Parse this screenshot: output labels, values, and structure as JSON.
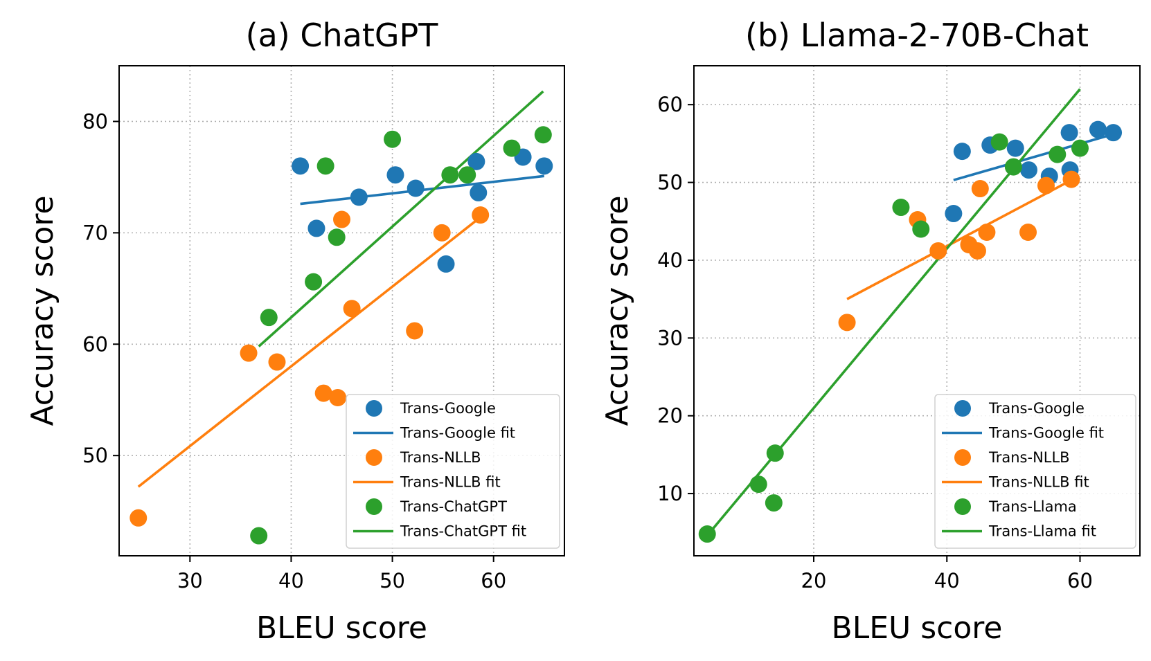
{
  "chart_data": [
    {
      "type": "scatter",
      "title": "(a) ChatGPT",
      "xlabel": "BLEU score",
      "ylabel": "Accuracy score",
      "xlim": [
        23,
        67
      ],
      "ylim": [
        41,
        85
      ],
      "xticks": [
        30,
        40,
        50,
        60
      ],
      "yticks": [
        50,
        60,
        70,
        80
      ],
      "grid": true,
      "legend_position": "lower-right",
      "series": [
        {
          "name": "Trans-Google",
          "color": "#1f77b4",
          "points": [
            [
              40.9,
              76.0
            ],
            [
              42.5,
              70.4
            ],
            [
              46.7,
              73.2
            ],
            [
              50.3,
              75.2
            ],
            [
              52.3,
              74.0
            ],
            [
              55.3,
              67.2
            ],
            [
              58.3,
              76.4
            ],
            [
              58.5,
              73.6
            ],
            [
              62.9,
              76.8
            ],
            [
              65.0,
              76.0
            ]
          ],
          "fit": {
            "name": "Trans-Google fit",
            "from": [
              40.9,
              72.6
            ],
            "to": [
              65.0,
              75.1
            ]
          }
        },
        {
          "name": "Trans-NLLB",
          "color": "#ff7f0e",
          "points": [
            [
              24.9,
              44.4
            ],
            [
              35.8,
              59.2
            ],
            [
              38.6,
              58.4
            ],
            [
              43.2,
              55.6
            ],
            [
              44.6,
              55.2
            ],
            [
              45.0,
              71.2
            ],
            [
              46.0,
              63.2
            ],
            [
              52.2,
              61.2
            ],
            [
              54.9,
              70.0
            ],
            [
              58.7,
              71.6
            ]
          ],
          "fit": {
            "name": "Trans-NLLB fit",
            "from": [
              24.9,
              47.2
            ],
            "to": [
              58.7,
              71.4
            ]
          }
        },
        {
          "name": "Trans-ChatGPT",
          "color": "#2ca02c",
          "points": [
            [
              36.8,
              42.8
            ],
            [
              37.8,
              62.4
            ],
            [
              42.2,
              65.6
            ],
            [
              43.4,
              76.0
            ],
            [
              44.5,
              69.6
            ],
            [
              50.0,
              78.4
            ],
            [
              55.7,
              75.2
            ],
            [
              57.4,
              75.2
            ],
            [
              61.8,
              77.6
            ],
            [
              64.9,
              78.8
            ]
          ],
          "fit": {
            "name": "Trans-ChatGPT fit",
            "from": [
              36.8,
              59.8
            ],
            "to": [
              64.9,
              82.7
            ]
          }
        }
      ]
    },
    {
      "type": "scatter",
      "title": "(b) Llama-2-70B-Chat",
      "xlabel": "BLEU score",
      "ylabel": "Accuracy score",
      "xlim": [
        2,
        69
      ],
      "ylim": [
        2,
        65
      ],
      "xticks": [
        20,
        40,
        60
      ],
      "yticks": [
        10,
        20,
        30,
        40,
        50,
        60
      ],
      "grid": true,
      "legend_position": "lower-right",
      "series": [
        {
          "name": "Trans-Google",
          "color": "#1f77b4",
          "points": [
            [
              41.0,
              46.0
            ],
            [
              42.3,
              54.0
            ],
            [
              46.5,
              54.8
            ],
            [
              50.3,
              54.4
            ],
            [
              52.3,
              51.6
            ],
            [
              55.4,
              50.8
            ],
            [
              58.4,
              56.4
            ],
            [
              58.5,
              51.6
            ],
            [
              62.7,
              56.8
            ],
            [
              65.0,
              56.4
            ]
          ],
          "fit": {
            "name": "Trans-Google fit",
            "from": [
              41.0,
              50.3
            ],
            "to": [
              65.0,
              56.2
            ]
          }
        },
        {
          "name": "Trans-NLLB",
          "color": "#ff7f0e",
          "points": [
            [
              25.0,
              32.0
            ],
            [
              35.6,
              45.2
            ],
            [
              38.7,
              41.2
            ],
            [
              43.3,
              42.0
            ],
            [
              44.6,
              41.2
            ],
            [
              45.0,
              49.2
            ],
            [
              46.0,
              43.6
            ],
            [
              52.2,
              43.6
            ],
            [
              54.9,
              49.6
            ],
            [
              58.7,
              50.4
            ]
          ],
          "fit": {
            "name": "Trans-NLLB fit",
            "from": [
              25.0,
              35.0
            ],
            "to": [
              58.7,
              50.3
            ]
          }
        },
        {
          "name": "Trans-Llama",
          "color": "#2ca02c",
          "points": [
            [
              4.0,
              4.8
            ],
            [
              11.7,
              11.2
            ],
            [
              14.0,
              8.8
            ],
            [
              14.2,
              15.2
            ],
            [
              33.1,
              46.8
            ],
            [
              36.1,
              44.0
            ],
            [
              47.9,
              55.2
            ],
            [
              50.0,
              52.0
            ],
            [
              56.6,
              53.6
            ],
            [
              60.0,
              54.4
            ]
          ],
          "fit": {
            "name": "Trans-Llama fit",
            "from": [
              4.0,
              4.6
            ],
            "to": [
              60.0,
              62.0
            ]
          }
        }
      ]
    }
  ]
}
